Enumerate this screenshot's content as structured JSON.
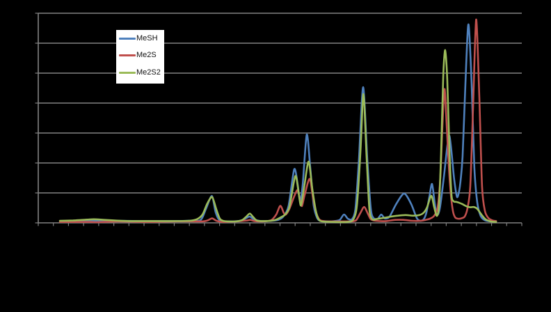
{
  "window": {
    "background_color": "#000000"
  },
  "chart": {
    "plot": {
      "background": "transparent",
      "gridline_color": "#828282",
      "axis_color": "#828282",
      "tick_labels_visible": false
    },
    "legend": {
      "background_color": "#FFFFFF",
      "entries": [
        {
          "label": "MeSH",
          "color": "#4F81BD"
        },
        {
          "label": "Me2S",
          "color": "#C0504D"
        },
        {
          "label": "Me2S2",
          "color": "#9BBB59"
        }
      ]
    }
  },
  "chart_data": {
    "type": "line",
    "smoothed": true,
    "title": "",
    "xlabel": "",
    "ylabel": "",
    "xlim": [
      0,
      32
    ],
    "ylim": [
      0,
      7
    ],
    "x_axis": {
      "tick_count": 33,
      "labels_visible": false
    },
    "y_axis": {
      "gridline_count": 8,
      "labels_visible": false
    },
    "legend_position": "inner-top-left",
    "y_units": "relative intensity (1 unit per gridline)",
    "series": [
      {
        "name": "MeSH",
        "color": "#4F81BD",
        "points": [
          [
            1.43,
            0.06
          ],
          [
            3.0,
            0.07
          ],
          [
            4.8,
            0.07
          ],
          [
            6.7,
            0.06
          ],
          [
            8.5,
            0.06
          ],
          [
            9.9,
            0.07
          ],
          [
            10.73,
            0.09
          ],
          [
            11.1,
            0.47
          ],
          [
            11.49,
            0.9
          ],
          [
            11.74,
            0.35
          ],
          [
            12.02,
            0.08
          ],
          [
            12.66,
            0.05
          ],
          [
            13.35,
            0.07
          ],
          [
            13.77,
            0.16
          ],
          [
            14.0,
            0.21
          ],
          [
            14.27,
            0.12
          ],
          [
            14.73,
            0.06
          ],
          [
            15.42,
            0.07
          ],
          [
            15.88,
            0.1
          ],
          [
            16.25,
            0.23
          ],
          [
            16.57,
            0.58
          ],
          [
            16.94,
            1.79
          ],
          [
            17.17,
            1.28
          ],
          [
            17.33,
            0.72
          ],
          [
            17.5,
            1.28
          ],
          [
            17.77,
            2.95
          ],
          [
            18.0,
            1.86
          ],
          [
            18.23,
            0.58
          ],
          [
            18.46,
            0.16
          ],
          [
            18.69,
            0.07
          ],
          [
            19.34,
            0.05
          ],
          [
            19.93,
            0.09
          ],
          [
            20.23,
            0.28
          ],
          [
            20.49,
            0.14
          ],
          [
            20.76,
            0.12
          ],
          [
            20.99,
            0.47
          ],
          [
            21.22,
            2.09
          ],
          [
            21.5,
            4.53
          ],
          [
            21.78,
            2.09
          ],
          [
            22.01,
            0.47
          ],
          [
            22.19,
            0.16
          ],
          [
            22.47,
            0.14
          ],
          [
            22.7,
            0.28
          ],
          [
            22.93,
            0.15
          ],
          [
            23.25,
            0.21
          ],
          [
            23.71,
            0.65
          ],
          [
            24.22,
            0.98
          ],
          [
            24.68,
            0.63
          ],
          [
            25.05,
            0.16
          ],
          [
            25.28,
            0.07
          ],
          [
            25.51,
            0.12
          ],
          [
            25.69,
            0.35
          ],
          [
            25.88,
            0.86
          ],
          [
            26.06,
            1.3
          ],
          [
            26.24,
            0.65
          ],
          [
            26.38,
            0.26
          ],
          [
            26.57,
            0.47
          ],
          [
            26.84,
            1.51
          ],
          [
            27.07,
            2.56
          ],
          [
            27.21,
            2.91
          ],
          [
            27.35,
            2.37
          ],
          [
            27.53,
            1.44
          ],
          [
            27.72,
            0.86
          ],
          [
            27.9,
            1.21
          ],
          [
            28.08,
            2.21
          ],
          [
            28.27,
            4.65
          ],
          [
            28.47,
            6.63
          ],
          [
            28.68,
            4.65
          ],
          [
            28.86,
            1.86
          ],
          [
            29.05,
            0.7
          ],
          [
            29.28,
            0.23
          ],
          [
            29.55,
            0.09
          ],
          [
            29.93,
            0.05
          ],
          [
            30.3,
            0.05
          ]
        ]
      },
      {
        "name": "Me2S",
        "color": "#C0504D",
        "points": [
          [
            1.43,
            0.03
          ],
          [
            3.45,
            0.03
          ],
          [
            3.91,
            0.02
          ],
          [
            5.29,
            0.05
          ],
          [
            7.14,
            0.03
          ],
          [
            8.98,
            0.05
          ],
          [
            10.82,
            0.05
          ],
          [
            11.19,
            0.08
          ],
          [
            11.51,
            0.15
          ],
          [
            11.79,
            0.07
          ],
          [
            12.2,
            0.03
          ],
          [
            13.12,
            0.05
          ],
          [
            13.81,
            0.08
          ],
          [
            14.04,
            0.1
          ],
          [
            14.32,
            0.06
          ],
          [
            14.87,
            0.05
          ],
          [
            15.42,
            0.09
          ],
          [
            15.75,
            0.28
          ],
          [
            16.02,
            0.57
          ],
          [
            16.25,
            0.33
          ],
          [
            16.39,
            0.28
          ],
          [
            16.62,
            0.47
          ],
          [
            17.13,
            1.09
          ],
          [
            17.31,
            0.77
          ],
          [
            17.45,
            0.56
          ],
          [
            17.63,
            0.93
          ],
          [
            17.96,
            1.47
          ],
          [
            18.19,
            0.81
          ],
          [
            18.42,
            0.3
          ],
          [
            18.65,
            0.09
          ],
          [
            19.11,
            0.05
          ],
          [
            20.03,
            0.05
          ],
          [
            20.72,
            0.05
          ],
          [
            21.04,
            0.09
          ],
          [
            21.32,
            0.33
          ],
          [
            21.57,
            0.53
          ],
          [
            21.82,
            0.3
          ],
          [
            22.01,
            0.12
          ],
          [
            22.33,
            0.07
          ],
          [
            23.02,
            0.06
          ],
          [
            23.62,
            0.1
          ],
          [
            24.17,
            0.1
          ],
          [
            24.72,
            0.07
          ],
          [
            25.32,
            0.07
          ],
          [
            25.64,
            0.1
          ],
          [
            25.92,
            0.14
          ],
          [
            26.19,
            0.23
          ],
          [
            26.43,
            0.51
          ],
          [
            26.61,
            1.51
          ],
          [
            26.75,
            3.26
          ],
          [
            26.89,
            4.47
          ],
          [
            27.02,
            3.37
          ],
          [
            27.16,
            1.98
          ],
          [
            27.3,
            0.98
          ],
          [
            27.44,
            0.4
          ],
          [
            27.58,
            0.19
          ],
          [
            27.76,
            0.14
          ],
          [
            27.99,
            0.15
          ],
          [
            28.22,
            0.21
          ],
          [
            28.4,
            0.47
          ],
          [
            28.59,
            1.21
          ],
          [
            28.77,
            3.72
          ],
          [
            28.98,
            6.79
          ],
          [
            29.19,
            4.19
          ],
          [
            29.37,
            1.21
          ],
          [
            29.56,
            0.4
          ],
          [
            29.79,
            0.16
          ],
          [
            30.07,
            0.08
          ],
          [
            30.3,
            0.06
          ]
        ]
      },
      {
        "name": "Me2S2",
        "color": "#9BBB59",
        "points": [
          [
            1.43,
            0.07
          ],
          [
            2.3,
            0.08
          ],
          [
            2.99,
            0.1
          ],
          [
            3.68,
            0.12
          ],
          [
            4.37,
            0.1
          ],
          [
            5.06,
            0.08
          ],
          [
            5.99,
            0.06
          ],
          [
            7.37,
            0.06
          ],
          [
            8.75,
            0.06
          ],
          [
            9.99,
            0.07
          ],
          [
            10.5,
            0.12
          ],
          [
            10.87,
            0.28
          ],
          [
            11.19,
            0.65
          ],
          [
            11.51,
            0.86
          ],
          [
            11.79,
            0.44
          ],
          [
            12.02,
            0.14
          ],
          [
            12.29,
            0.06
          ],
          [
            13.03,
            0.05
          ],
          [
            13.49,
            0.09
          ],
          [
            13.77,
            0.21
          ],
          [
            14.0,
            0.31
          ],
          [
            14.23,
            0.19
          ],
          [
            14.46,
            0.08
          ],
          [
            14.96,
            0.06
          ],
          [
            15.65,
            0.09
          ],
          [
            16.07,
            0.19
          ],
          [
            16.34,
            0.28
          ],
          [
            16.62,
            0.53
          ],
          [
            17.01,
            1.56
          ],
          [
            17.22,
            1.05
          ],
          [
            17.38,
            0.58
          ],
          [
            17.59,
            1.16
          ],
          [
            17.89,
            2.05
          ],
          [
            18.14,
            1.12
          ],
          [
            18.37,
            0.4
          ],
          [
            18.55,
            0.12
          ],
          [
            18.78,
            0.05
          ],
          [
            19.57,
            0.03
          ],
          [
            20.49,
            0.03
          ],
          [
            20.86,
            0.12
          ],
          [
            21.09,
            0.58
          ],
          [
            21.32,
            2.33
          ],
          [
            21.52,
            4.3
          ],
          [
            21.73,
            2.21
          ],
          [
            21.91,
            0.47
          ],
          [
            22.1,
            0.12
          ],
          [
            22.42,
            0.13
          ],
          [
            22.79,
            0.16
          ],
          [
            23.25,
            0.2
          ],
          [
            23.8,
            0.24
          ],
          [
            24.31,
            0.26
          ],
          [
            24.81,
            0.24
          ],
          [
            25.23,
            0.26
          ],
          [
            25.51,
            0.34
          ],
          [
            25.74,
            0.53
          ],
          [
            26.01,
            0.91
          ],
          [
            26.2,
            0.53
          ],
          [
            26.38,
            0.23
          ],
          [
            26.52,
            0.58
          ],
          [
            26.66,
            2.33
          ],
          [
            26.8,
            4.88
          ],
          [
            26.93,
            5.77
          ],
          [
            27.07,
            4.77
          ],
          [
            27.21,
            2.44
          ],
          [
            27.35,
            0.93
          ],
          [
            27.49,
            0.72
          ],
          [
            27.67,
            0.7
          ],
          [
            27.86,
            0.67
          ],
          [
            28.09,
            0.62
          ],
          [
            28.31,
            0.56
          ],
          [
            28.59,
            0.52
          ],
          [
            28.82,
            0.53
          ],
          [
            29.05,
            0.47
          ],
          [
            29.33,
            0.28
          ],
          [
            29.6,
            0.12
          ],
          [
            29.93,
            0.05
          ],
          [
            30.3,
            0.03
          ]
        ]
      }
    ]
  }
}
